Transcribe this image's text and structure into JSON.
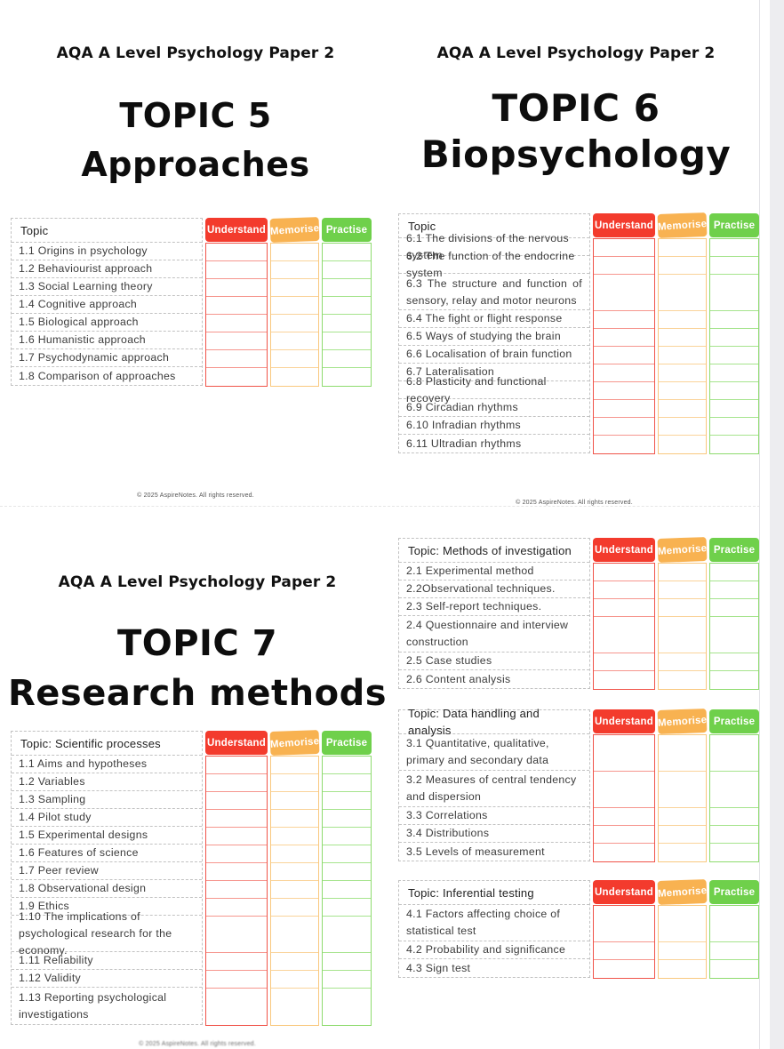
{
  "brand_header": "AQA A Level Psychology Paper 2",
  "copyright": "© 2025 AspireNotes. All rights reserved.",
  "colors": {
    "understand": "#f33b2d",
    "memorise": "#f8b251",
    "practise": "#6fd04b",
    "understand_border": "#f0544a",
    "memorise_border": "#f9c87e",
    "practise_border": "#8edb6e",
    "understand_line": "#f6968e",
    "memorise_line": "#fad39a",
    "practise_line": "#a6e48d",
    "side_strip": "#ededf0"
  },
  "status_columns": [
    "Understand",
    "Memorise",
    "Practise"
  ],
  "sections": {
    "topic5": {
      "title_line1": "TOPIC 5",
      "title_line2": "Approaches"
    },
    "topic6": {
      "title_line1": "TOPIC 6",
      "title_line2": "Biopsychology"
    },
    "topic7": {
      "title_line1": "TOPIC 7",
      "title_line2": "Research methods"
    }
  },
  "tables": {
    "topic5": {
      "topic_header": "Topic",
      "rows": [
        {
          "label": "1.1 Origins in psychology"
        },
        {
          "label": "1.2 Behaviourist approach"
        },
        {
          "label": "1.3 Social Learning theory"
        },
        {
          "label": "1.4 Cognitive approach"
        },
        {
          "label": "1.5 Biological approach"
        },
        {
          "label": "1.6 Humanistic approach"
        },
        {
          "label": "1.7 Psychodynamic approach"
        },
        {
          "label": "1.8 Comparison of approaches"
        }
      ]
    },
    "topic6": {
      "topic_header": "Topic",
      "rows": [
        {
          "label": "6.1 The divisions of the nervous system"
        },
        {
          "label": "6.2 The function of the endocrine system"
        },
        {
          "label": "6.3 The structure and function of sensory, relay and motor neurons",
          "tall": true,
          "justify": true
        },
        {
          "label": "6.4 The fight or flight response"
        },
        {
          "label": "6.5 Ways of studying the brain"
        },
        {
          "label": "6.6 Localisation of brain function"
        },
        {
          "label": "6.7 Lateralisation"
        },
        {
          "label": "6.8 Plasticity and functional recovery"
        },
        {
          "label": "6.9 Circadian rhythms"
        },
        {
          "label": "6.10 Infradian rhythms"
        },
        {
          "label": "6.11 Ultradian rhythms"
        }
      ]
    },
    "topic7": {
      "topic_header": "Topic: Scientific processes",
      "rows": [
        {
          "label": "1.1 Aims and hypotheses"
        },
        {
          "label": "1.2 Variables"
        },
        {
          "label": "1.3 Sampling"
        },
        {
          "label": "1.4 Pilot study"
        },
        {
          "label": "1.5 Experimental designs"
        },
        {
          "label": "1.6 Features of science"
        },
        {
          "label": "1.7 Peer review"
        },
        {
          "label": "1.8 Observational design"
        },
        {
          "label": "1.9 Ethics"
        },
        {
          "label": "1.10 The implications of psychological research for the economy.",
          "tall": true
        },
        {
          "label": "1.11 Reliability"
        },
        {
          "label": "1.12 Validity"
        },
        {
          "label": "1.13 Reporting psychological investigations",
          "tall": true
        }
      ]
    },
    "methods": {
      "topic_header": "Topic: Methods of investigation",
      "rows": [
        {
          "label": "2.1 Experimental method"
        },
        {
          "label": "2.2Observational techniques."
        },
        {
          "label": "2.3 Self-report techniques."
        },
        {
          "label": "2.4 Questionnaire and interview construction",
          "tall": true
        },
        {
          "label": "2.5 Case studies"
        },
        {
          "label": "2.6 Content analysis"
        }
      ]
    },
    "data_handling": {
      "topic_header": "Topic: Data handling and analysis",
      "rows": [
        {
          "label": "3.1 Quantitative, qualitative, primary and secondary data",
          "tall": true
        },
        {
          "label": "3.2 Measures of central tendency and dispersion",
          "tall": true
        },
        {
          "label": "3.3 Correlations"
        },
        {
          "label": "3.4 Distributions"
        },
        {
          "label": "3.5 Levels of measurement"
        }
      ]
    },
    "inferential": {
      "topic_header": "Topic: Inferential testing",
      "rows": [
        {
          "label": "4.1 Factors affecting choice of statistical test",
          "tall": true
        },
        {
          "label": "4.2 Probability and significance"
        },
        {
          "label": "4.3 Sign test"
        }
      ]
    }
  }
}
